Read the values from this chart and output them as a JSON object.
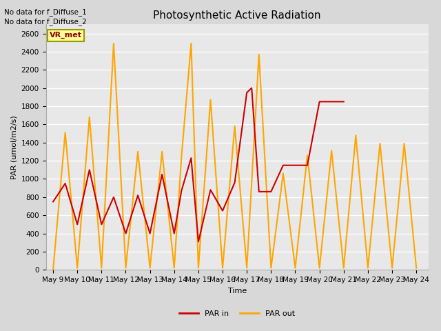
{
  "title": "Photosynthetic Active Radiation",
  "xlabel": "Time",
  "ylabel": "PAR (umol/m2/s)",
  "annotations": [
    "No data for f_Diffuse_1",
    "No data for f_Diffuse_2"
  ],
  "box_label": "VR_met",
  "fig_bg_color": "#d8d8d8",
  "plot_bg_color": "#e8e8e8",
  "ylim": [
    0,
    2700
  ],
  "yticks": [
    0,
    200,
    400,
    600,
    800,
    1000,
    1200,
    1400,
    1600,
    1800,
    2000,
    2200,
    2400,
    2600
  ],
  "x_labels": [
    "May 9",
    "May 10",
    "May 11",
    "May 12",
    "May 13",
    "May 14",
    "May 15",
    "May 16",
    "May 17",
    "May 18",
    "May 19",
    "May 20",
    "May 21",
    "May 22",
    "May 23",
    "May 24"
  ],
  "par_in_x": [
    9,
    9.5,
    10,
    10.5,
    11,
    11.5,
    12,
    12.5,
    13,
    13.5,
    14,
    14.3,
    14.7,
    15,
    15.5,
    16,
    16.5,
    17,
    17.2,
    17.5,
    18,
    18.5,
    19,
    19.5,
    20,
    21
  ],
  "par_in_y": [
    750,
    950,
    500,
    1100,
    500,
    800,
    400,
    820,
    400,
    1050,
    400,
    870,
    1230,
    310,
    880,
    650,
    960,
    1950,
    2000,
    860,
    860,
    1150,
    1150,
    1150,
    1850,
    1850
  ],
  "par_out_x": [
    9,
    9.5,
    10,
    10.5,
    11,
    11.5,
    12,
    12.5,
    13,
    13.5,
    14,
    14.3,
    14.7,
    15,
    15.5,
    16,
    16.5,
    17,
    17.5,
    18,
    18.5,
    19,
    19.5,
    20,
    20.5,
    21,
    21.5,
    22,
    22.5,
    23,
    23.5,
    24
  ],
  "par_out_y": [
    0,
    1510,
    20,
    1680,
    20,
    2490,
    20,
    1300,
    20,
    1300,
    20,
    1240,
    2490,
    20,
    1870,
    20,
    1580,
    20,
    2370,
    20,
    1060,
    20,
    1260,
    20,
    1310,
    20,
    1480,
    20,
    1390,
    20,
    1390,
    20
  ],
  "par_in_color": "#cc0000",
  "par_out_color": "#ffa500",
  "line_width": 1.5,
  "title_fontsize": 11,
  "label_fontsize": 8,
  "tick_fontsize": 7.5,
  "legend_fontsize": 8
}
